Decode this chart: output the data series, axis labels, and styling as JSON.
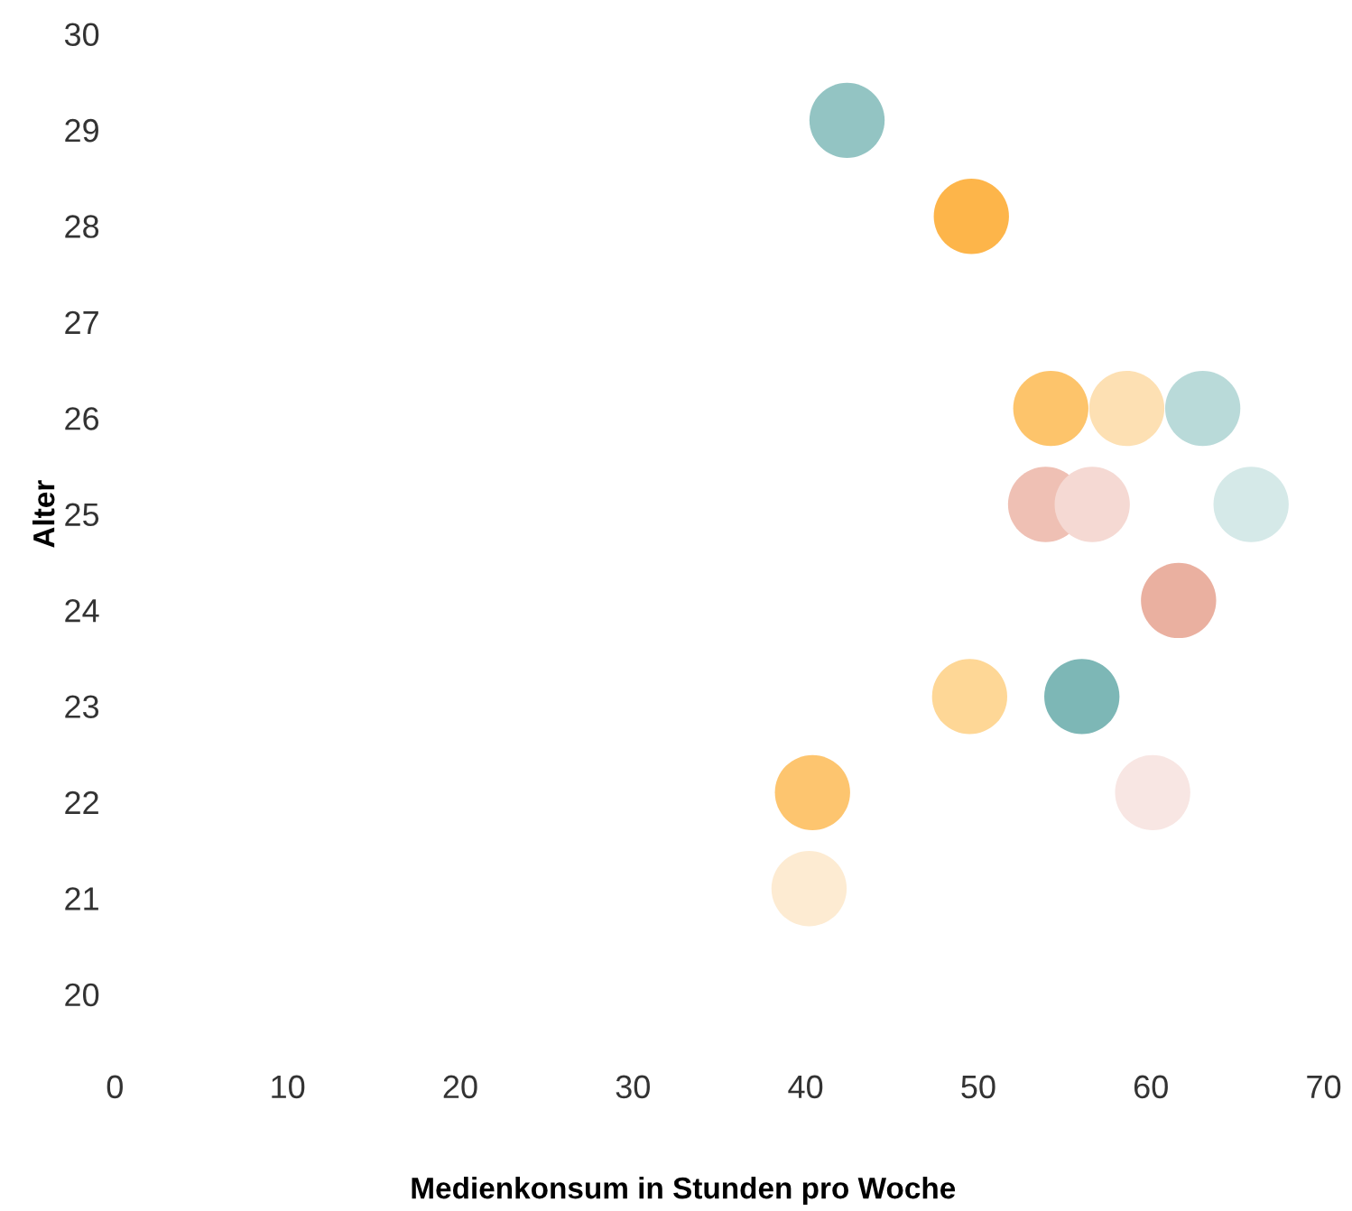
{
  "chart_data": {
    "type": "scatter",
    "xlabel": "Medienkonsum in Stunden pro Woche",
    "ylabel": "Alter",
    "x": [
      42.4,
      49.6,
      54.2,
      58.6,
      63.0,
      53.9,
      56.6,
      65.8,
      61.6,
      49.5,
      56.0,
      40.4,
      60.1,
      40.2
    ],
    "values": [
      29.1,
      28.1,
      26.1,
      26.1,
      26.1,
      25.1,
      25.1,
      25.1,
      24.1,
      23.1,
      23.1,
      22.1,
      22.1,
      21.1
    ],
    "colors": [
      "#93c4c3",
      "#fdb54a",
      "#fdc46b",
      "#fde0b3",
      "#b9dad9",
      "#efc0b4",
      "#f5d9d3",
      "#d5e9e8",
      "#eab0a0",
      "#fed796",
      "#7db7b6",
      "#fdc56f",
      "#f8e6e3",
      "#fdebd2"
    ],
    "xlim": [
      0,
      70
    ],
    "xticks": [
      0,
      10,
      20,
      30,
      40,
      50,
      60,
      70
    ],
    "ylim": [
      20,
      30
    ],
    "yticks": [
      20,
      21,
      22,
      23,
      24,
      25,
      26,
      27,
      28,
      29,
      30
    ],
    "marker": "circle",
    "grid": false,
    "legend": false
  }
}
